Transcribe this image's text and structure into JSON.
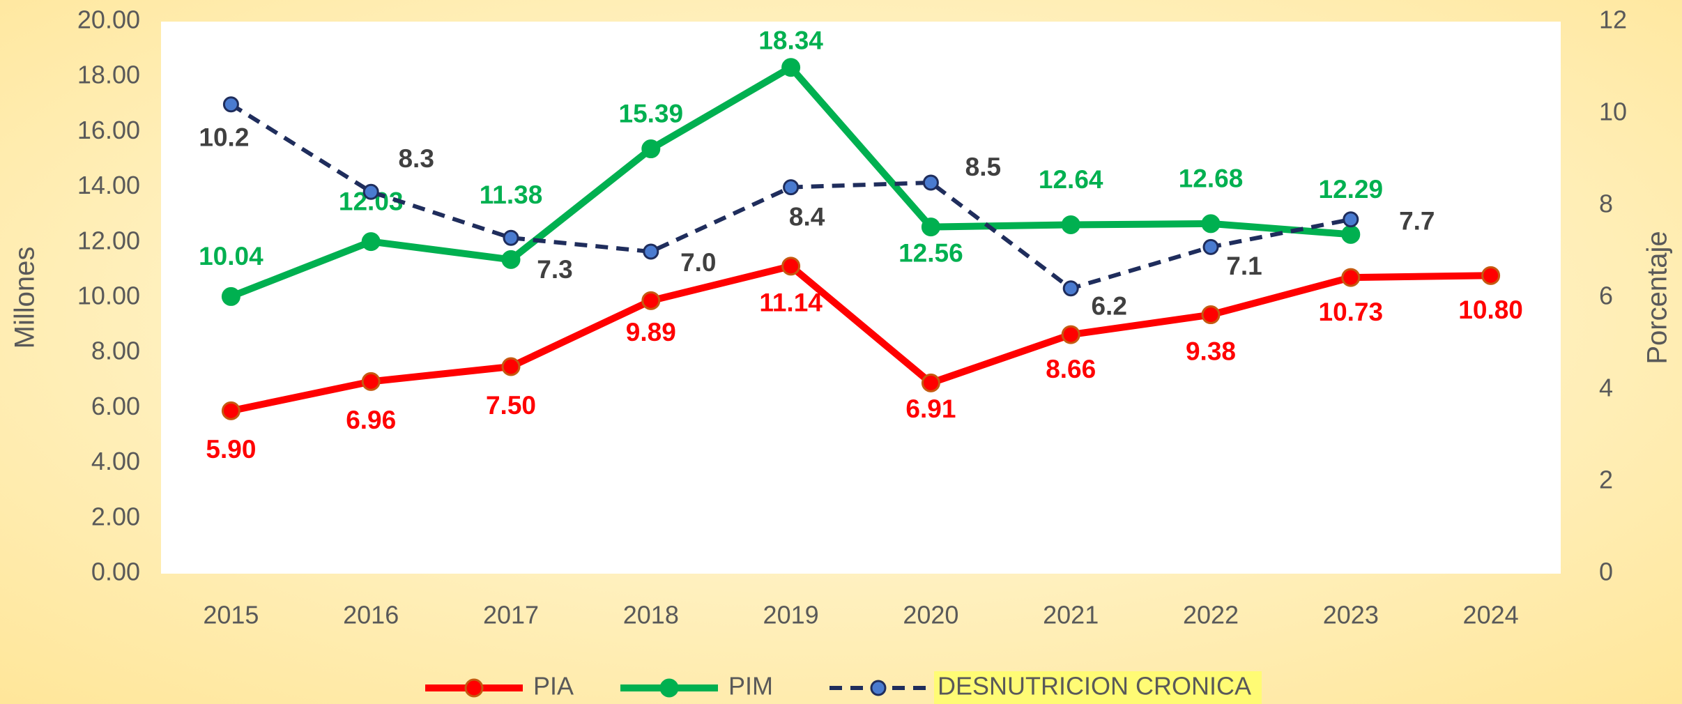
{
  "chart_data": {
    "type": "line",
    "y_label": "Millones",
    "y2_label": "Porcentaje",
    "categories": [
      "2015",
      "2016",
      "2017",
      "2018",
      "2019",
      "2020",
      "2021",
      "2022",
      "2023",
      "2024"
    ],
    "ylim": [
      0,
      20
    ],
    "yticks": [
      {
        "value": 0,
        "label": "0.00"
      },
      {
        "value": 2,
        "label": "2.00"
      },
      {
        "value": 4,
        "label": "4.00"
      },
      {
        "value": 6,
        "label": "6.00"
      },
      {
        "value": 8,
        "label": "8.00"
      },
      {
        "value": 10,
        "label": "10.00"
      },
      {
        "value": 12,
        "label": "12.00"
      },
      {
        "value": 14,
        "label": "14.00"
      },
      {
        "value": 16,
        "label": "16.00"
      },
      {
        "value": 18,
        "label": "18.00"
      },
      {
        "value": 20,
        "label": "20.00"
      }
    ],
    "y2lim": [
      0,
      12
    ],
    "y2ticks": [
      0,
      2,
      4,
      6,
      8,
      10,
      12
    ],
    "series": [
      {
        "name": "PIA",
        "color": "#ff0000",
        "values": [
          5.9,
          6.96,
          7.5,
          9.89,
          11.14,
          6.91,
          8.66,
          9.38,
          10.73,
          10.8
        ],
        "value_labels": [
          "5.90",
          "6.96",
          "7.50",
          "9.89",
          "11.14",
          "6.91",
          "8.66",
          "9.38",
          "10.73",
          "10.80"
        ]
      },
      {
        "name": "PIM",
        "color": "#00b050",
        "values": [
          10.04,
          12.03,
          11.38,
          15.39,
          18.34,
          12.56,
          12.64,
          12.68,
          12.29,
          null
        ],
        "value_labels": [
          "10.04",
          "12.03",
          "11.38",
          "15.39",
          "18.34",
          "12.56",
          "12.64",
          "12.68",
          "12.29",
          null
        ]
      },
      {
        "name": "DESNUTRICION CRONICA",
        "color": "#1f2d5c",
        "axis": "y2",
        "dashed": true,
        "values": [
          10.2,
          8.3,
          7.3,
          7.0,
          8.4,
          8.5,
          6.2,
          7.1,
          7.7,
          null
        ],
        "value_labels": [
          "10.2",
          "8.3",
          "7.3",
          "7.0",
          "8.4",
          "8.5",
          "6.2",
          "7.1",
          "7.7",
          null
        ]
      }
    ]
  }
}
